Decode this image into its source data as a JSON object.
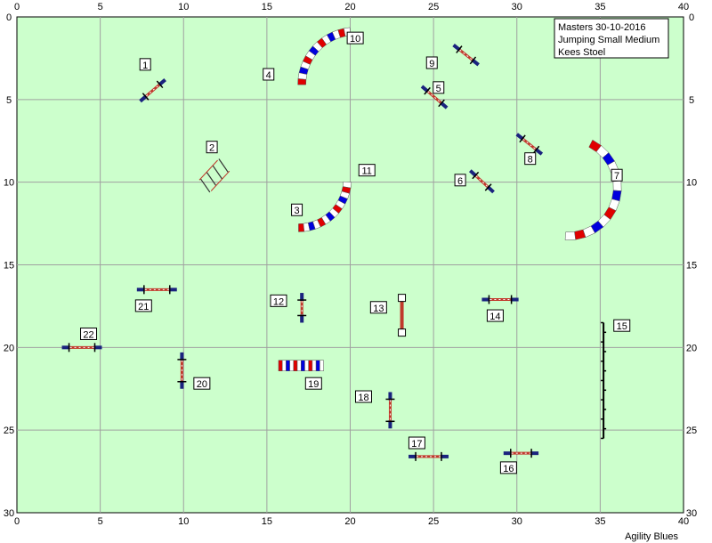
{
  "course": {
    "info_lines": [
      "Masters 30-10-2016",
      "Jumping Small Medium",
      "Kees Stoel"
    ],
    "credit": "Agility Blues",
    "x_ticks": [
      0,
      5,
      10,
      15,
      20,
      25,
      30,
      35,
      40
    ],
    "y_ticks": [
      0,
      5,
      10,
      15,
      20,
      25,
      30
    ],
    "xlim": [
      0,
      40
    ],
    "ylim": [
      0,
      30
    ],
    "grid": true,
    "colors": {
      "field": "#ccffcc",
      "grid": "#a0a0a0",
      "bar_red": "#c0392b",
      "wing": "#1a237e",
      "tunnel_red": "#e00000",
      "tunnel_blue": "#0000dd"
    }
  },
  "obstacles": [
    {
      "number": "1",
      "type": "jump",
      "x1": 7.4,
      "y1": 5.1,
      "x2": 8.9,
      "y2": 3.8,
      "label_x": 7.7,
      "label_y": 2.9
    },
    {
      "number": "2",
      "type": "tire",
      "x1": 11.3,
      "y1": 10.2,
      "x2": 12.4,
      "y2": 9.0,
      "label_x": 11.7,
      "label_y": 7.9
    },
    {
      "number": "3",
      "type": "tunnel",
      "x1": 16.9,
      "y1": 12.9,
      "x2": 19.8,
      "y2": 9.5,
      "label_x": 16.8,
      "label_y": 11.7
    },
    {
      "number": "4",
      "type": "tunnel",
      "x1": 17.1,
      "y1": 3.8,
      "x2": 20.3,
      "y2": 0.5,
      "label_x": 15.1,
      "label_y": 3.5
    },
    {
      "number": "5",
      "type": "jump",
      "x1": 24.3,
      "y1": 4.2,
      "x2": 25.8,
      "y2": 5.5,
      "label_x": 25.3,
      "label_y": 4.3
    },
    {
      "number": "6",
      "type": "jump",
      "x1": 27.2,
      "y1": 9.3,
      "x2": 28.6,
      "y2": 10.6,
      "label_x": 26.6,
      "label_y": 9.9
    },
    {
      "number": "7",
      "type": "tunnel",
      "x1": 34.8,
      "y1": 9.9,
      "x2": 33.1,
      "y2": 13.6,
      "label_x": 36.0,
      "label_y": 9.6
    },
    {
      "number": "8",
      "type": "jump",
      "x1": 30.0,
      "y1": 7.1,
      "x2": 31.5,
      "y2": 8.3,
      "label_x": 30.8,
      "label_y": 8.6
    },
    {
      "number": "9",
      "type": "jump",
      "x1": 26.2,
      "y1": 1.7,
      "x2": 27.7,
      "y2": 2.9,
      "label_x": 24.9,
      "label_y": 2.8
    },
    {
      "number": "10",
      "type": "tunnel",
      "x1": 17.1,
      "y1": 3.8,
      "x2": 20.3,
      "y2": 0.5,
      "label_x": 20.3,
      "label_y": 1.3
    },
    {
      "number": "11",
      "type": "tunnel",
      "x1": 16.9,
      "y1": 12.9,
      "x2": 19.8,
      "y2": 9.5,
      "label_x": 21.0,
      "label_y": 9.3
    },
    {
      "number": "12",
      "type": "jump",
      "x1": 17.1,
      "y1": 16.7,
      "x2": 17.1,
      "y2": 18.5,
      "label_x": 15.7,
      "label_y": 17.2
    },
    {
      "number": "13",
      "type": "dogwalk",
      "x1": 23.1,
      "y1": 17.0,
      "x2": 23.1,
      "y2": 19.1,
      "label_x": 21.7,
      "label_y": 17.6
    },
    {
      "number": "14",
      "type": "jump",
      "x1": 27.9,
      "y1": 17.1,
      "x2": 30.1,
      "y2": 17.1,
      "label_x": 28.7,
      "label_y": 18.1
    },
    {
      "number": "15",
      "type": "weave",
      "x1": 35.2,
      "y1": 18.5,
      "x2": 35.2,
      "y2": 25.5,
      "label_x": 36.3,
      "label_y": 18.7
    },
    {
      "number": "16",
      "type": "jump",
      "x1": 29.2,
      "y1": 26.4,
      "x2": 31.3,
      "y2": 26.4,
      "label_x": 29.5,
      "label_y": 27.3
    },
    {
      "number": "17",
      "type": "jump",
      "x1": 23.5,
      "y1": 26.6,
      "x2": 25.9,
      "y2": 26.6,
      "label_x": 24.0,
      "label_y": 25.8
    },
    {
      "number": "18",
      "type": "jump",
      "x1": 22.4,
      "y1": 22.7,
      "x2": 22.4,
      "y2": 24.9,
      "label_x": 20.8,
      "label_y": 23.0
    },
    {
      "number": "19",
      "type": "tunnel-straight",
      "x1": 15.7,
      "y1": 21.1,
      "x2": 18.4,
      "y2": 21.1,
      "label_x": 17.8,
      "label_y": 22.2
    },
    {
      "number": "20",
      "type": "jump",
      "x1": 9.9,
      "y1": 20.3,
      "x2": 9.9,
      "y2": 22.5,
      "label_x": 11.1,
      "label_y": 22.2
    },
    {
      "number": "21",
      "type": "jump",
      "x1": 7.2,
      "y1": 16.5,
      "x2": 9.6,
      "y2": 16.5,
      "label_x": 7.6,
      "label_y": 17.5
    },
    {
      "number": "22",
      "type": "jump",
      "x1": 2.7,
      "y1": 20.0,
      "x2": 5.1,
      "y2": 20.0,
      "label_x": 4.3,
      "label_y": 19.2
    }
  ]
}
